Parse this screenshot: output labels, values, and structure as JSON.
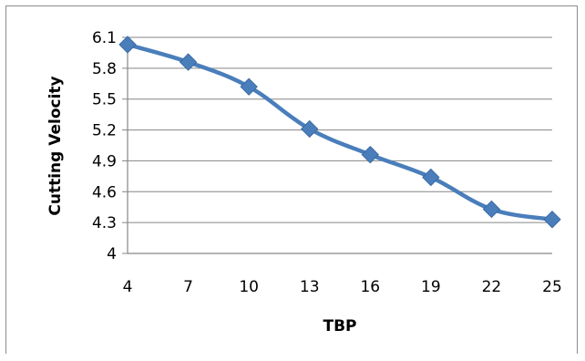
{
  "chart_data": {
    "type": "line",
    "title": "",
    "xlabel": "TBP",
    "ylabel": "Cutting Velocity",
    "x": [
      4,
      7,
      10,
      13,
      16,
      19,
      22,
      25
    ],
    "series": [
      {
        "values": [
          6.03,
          5.86,
          5.62,
          5.21,
          4.96,
          4.74,
          4.43,
          4.33
        ]
      }
    ],
    "yticks": [
      "6.1",
      "5.8",
      "5.5",
      "5.2",
      "4.9",
      "4.6",
      "4.3",
      "4"
    ],
    "xticks": [
      "4",
      "7",
      "10",
      "13",
      "16",
      "19",
      "22",
      "25"
    ],
    "ylim": [
      4,
      6.1
    ],
    "grid": true,
    "legend": "none",
    "line_color": "#4A7EBB",
    "grid_color": "#868686"
  }
}
